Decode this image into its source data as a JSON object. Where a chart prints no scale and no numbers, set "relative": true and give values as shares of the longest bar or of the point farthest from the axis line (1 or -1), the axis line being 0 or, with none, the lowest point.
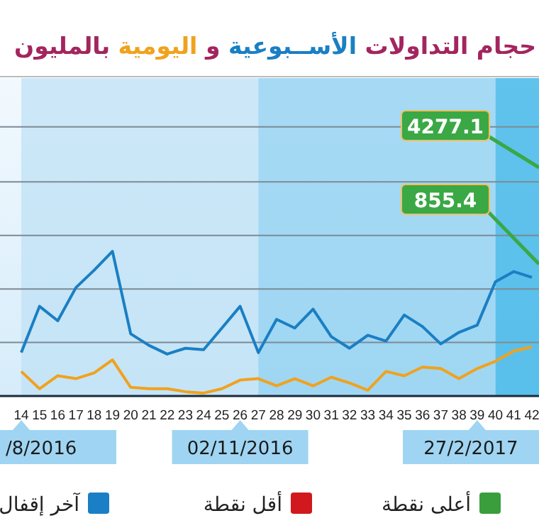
{
  "chart_data": {
    "type": "line",
    "title": "حجام التداولات الأســبوعية و اليومية بالمليون",
    "relative": true,
    "categories": [
      "14",
      "15",
      "16",
      "17",
      "18",
      "19",
      "20",
      "21",
      "22",
      "23",
      "24",
      "25",
      "26",
      "27",
      "28",
      "29",
      "30",
      "31",
      "32",
      "33",
      "34",
      "35",
      "36",
      "37",
      "38",
      "39",
      "40",
      "41",
      "42"
    ],
    "series": [
      {
        "color": "#1a7fc4",
        "values": [
          0.3,
          0.62,
          0.52,
          0.75,
          0.87,
          1,
          0.43,
          0.35,
          0.29,
          0.33,
          0.32,
          0.47,
          0.62,
          0.3,
          0.53,
          0.47,
          0.6,
          0.41,
          0.33,
          0.42,
          0.38,
          0.56,
          0.48,
          0.36,
          0.44,
          0.49,
          0.79,
          0.86,
          0.82
        ]
      },
      {
        "color": "#f0a21e",
        "values": [
          0.17,
          0.05,
          0.14,
          0.12,
          0.16,
          0.25,
          0.06,
          0.05,
          0.05,
          0.03,
          0.02,
          0.05,
          0.11,
          0.12,
          0.07,
          0.12,
          0.07,
          0.13,
          0.09,
          0.04,
          0.17,
          0.14,
          0.2,
          0.19,
          0.12,
          0.19,
          0.24,
          0.31,
          0.34
        ]
      }
    ],
    "bands": [
      {
        "axis": "x",
        "from": "14",
        "to": "27",
        "color": "#bfe2f6"
      },
      {
        "axis": "x",
        "from": "27",
        "to": "40",
        "color": "#8ccff0"
      },
      {
        "axis": "x",
        "from": "40",
        "to": "42",
        "color": "#2fb0e6"
      }
    ],
    "ref_lines": [
      {
        "axis": "y",
        "value": 0.37,
        "color": "#7d8a96"
      },
      {
        "axis": "y",
        "value": 0.74,
        "color": "#7d8a96"
      },
      {
        "axis": "y",
        "value": 1.11,
        "color": "#7d8a96"
      },
      {
        "axis": "y",
        "value": 1.48,
        "color": "#7d8a96"
      },
      {
        "axis": "y",
        "value": 1.86,
        "color": "#7d8a96"
      }
    ],
    "annotations": [
      "/8/2016",
      "02/11/2016",
      "27/2/2017",
      "4277.1",
      "855.4",
      "أعلى نقطة",
      "أقل نقطة",
      "آخر إقفال"
    ]
  }
}
